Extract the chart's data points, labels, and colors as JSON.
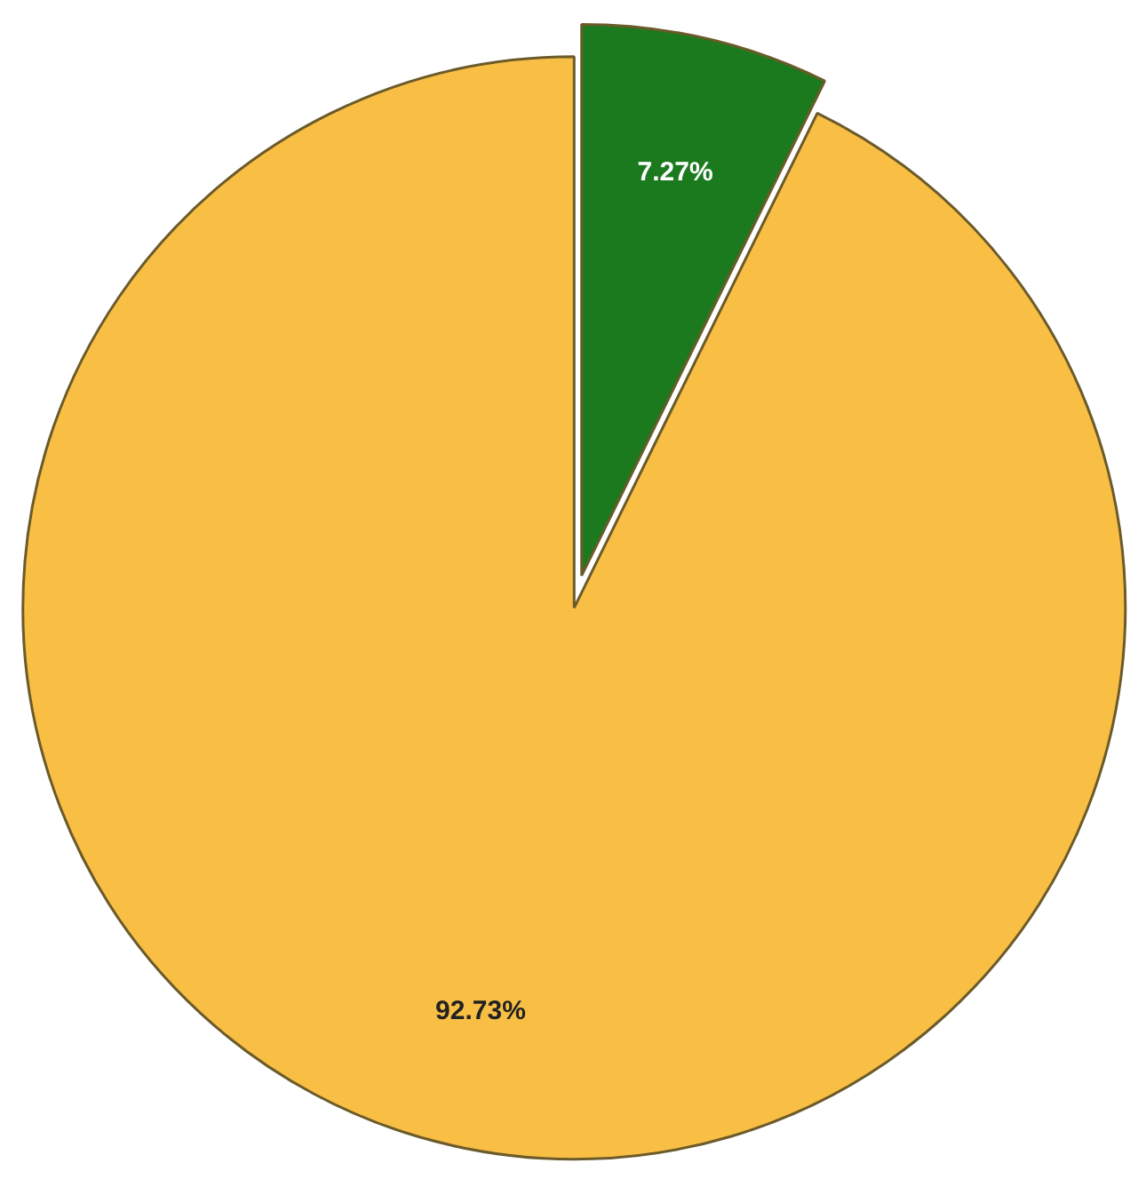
{
  "chart_data": {
    "type": "pie",
    "categories": [
      null,
      null
    ],
    "values": [
      7.27,
      92.73
    ],
    "colors": [
      "#1b7a1e",
      "#f9bf45"
    ],
    "value_labels": [
      "7.27%",
      "92.73%"
    ]
  }
}
